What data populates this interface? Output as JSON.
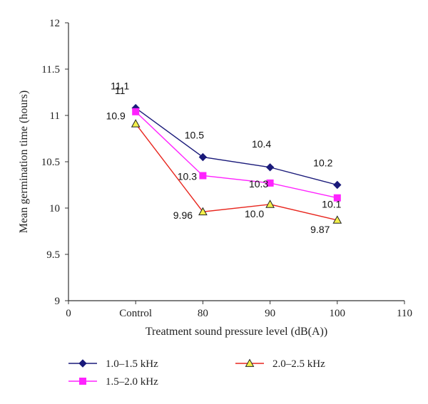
{
  "chart_data": {
    "type": "line",
    "x_categories": [
      "0",
      "Control",
      "80",
      "90",
      "100",
      "110"
    ],
    "xlabel": "Treatment sound pressure level (dB(A))",
    "ylabel": "Mean germination time (hours)",
    "ylim": [
      9,
      12
    ],
    "yticks": [
      "9",
      "9.5",
      "10",
      "10.5",
      "11",
      "11.5",
      "12"
    ],
    "series": [
      {
        "name": "1.0–1.5 kHz",
        "color": "#1a1a7a",
        "marker": "diamond",
        "points": [
          {
            "x": "Control",
            "y": 11.08,
            "label": "11.1"
          },
          {
            "x": "80",
            "y": 10.55,
            "label": "10.5"
          },
          {
            "x": "90",
            "y": 10.44,
            "label": "10.4"
          },
          {
            "x": "100",
            "y": 10.25,
            "label": "10.2"
          }
        ]
      },
      {
        "name": "1.5–2.0 kHz",
        "color": "#ff22ff",
        "marker": "square",
        "points": [
          {
            "x": "Control",
            "y": 11.04,
            "label": "11"
          },
          {
            "x": "80",
            "y": 10.35,
            "label": "10.3"
          },
          {
            "x": "90",
            "y": 10.27,
            "label": "10.3"
          },
          {
            "x": "100",
            "y": 10.11,
            "label": "10.1"
          }
        ]
      },
      {
        "name": "2.0–2.5 kHz",
        "color": "#e8261e",
        "marker": "triangle",
        "marker_fill": "#f3f04a",
        "points": [
          {
            "x": "Control",
            "y": 10.91,
            "label": "10.9"
          },
          {
            "x": "80",
            "y": 9.96,
            "label": "9.96"
          },
          {
            "x": "90",
            "y": 10.04,
            "label": "10.0"
          },
          {
            "x": "100",
            "y": 9.87,
            "label": "9.87"
          }
        ]
      }
    ],
    "grid": false,
    "legend_position": "bottom"
  }
}
